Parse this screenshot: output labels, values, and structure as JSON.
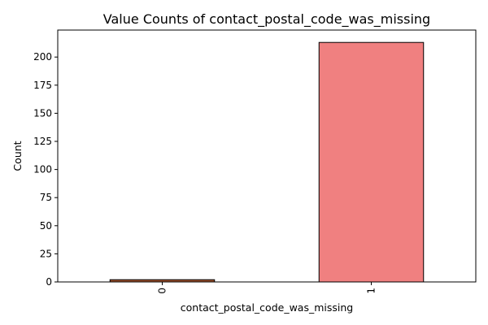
{
  "chart_data": {
    "type": "bar",
    "title": "Value Counts of contact_postal_code_was_missing",
    "xlabel": "contact_postal_code_was_missing",
    "ylabel": "Count",
    "categories": [
      "0",
      "1"
    ],
    "values": [
      2,
      213
    ],
    "colors": [
      "#a0522d",
      "#f08080"
    ],
    "edge_color": "#000000",
    "ylim": [
      0,
      224
    ],
    "yticks": [
      0,
      25,
      50,
      75,
      100,
      125,
      150,
      175,
      200
    ],
    "xtick_rotation": "vertical",
    "grid": false,
    "legend": "none"
  }
}
